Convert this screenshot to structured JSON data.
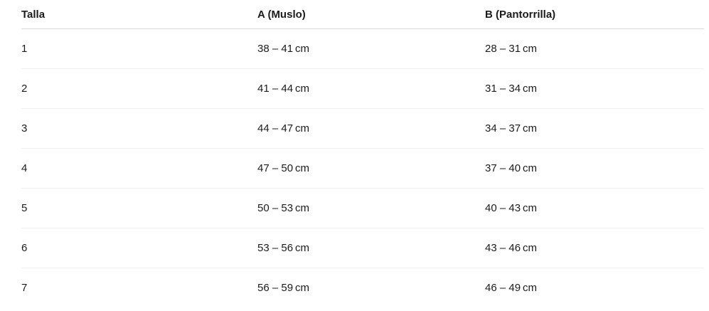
{
  "colors": {
    "background": "#ffffff",
    "text": "#1b1b1b",
    "header_divider": "#d9d9d9",
    "row_divider": "#f0f0f0"
  },
  "size_table": {
    "columns": [
      {
        "key": "talla",
        "label": "Talla"
      },
      {
        "key": "a",
        "label": "A (Muslo)"
      },
      {
        "key": "b",
        "label": "B (Pantorrilla)"
      }
    ],
    "rows": [
      {
        "talla": "1",
        "a": "38 – 41 cm",
        "b": "28 – 31 cm"
      },
      {
        "talla": "2",
        "a": "41 – 44 cm",
        "b": "31 – 34 cm"
      },
      {
        "talla": "3",
        "a": "44 – 47 cm",
        "b": "34 – 37 cm"
      },
      {
        "talla": "4",
        "a": "47 – 50 cm",
        "b": "37 – 40 cm"
      },
      {
        "talla": "5",
        "a": "50 – 53 cm",
        "b": "40 – 43 cm"
      },
      {
        "talla": "6",
        "a": "53 – 56 cm",
        "b": "43 – 46 cm"
      },
      {
        "talla": "7",
        "a": "56 – 59 cm",
        "b": "46 – 49 cm"
      }
    ]
  }
}
